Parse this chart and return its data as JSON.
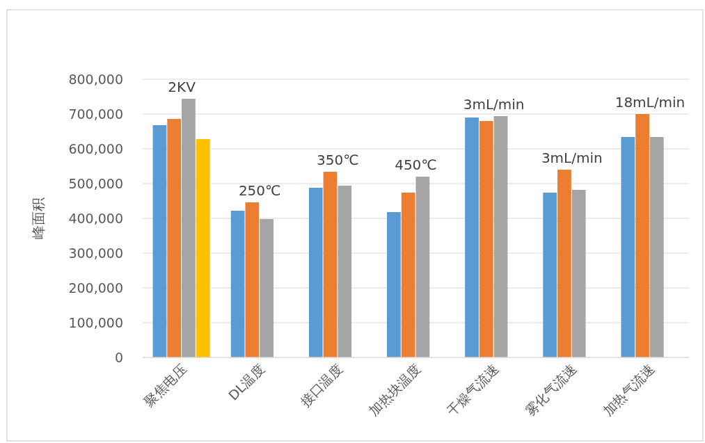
{
  "chart_data": {
    "type": "bar",
    "ylabel": "峰面积",
    "categories": [
      "聚焦电压",
      "DL温度",
      "接口温度",
      "加热块温度",
      "干燥气流速",
      "雾化气流速",
      "加热气流速"
    ],
    "series": [
      {
        "color": "#5b9bd5",
        "values": [
          668000,
          422000,
          488000,
          418000,
          690000,
          474000,
          634000
        ]
      },
      {
        "color": "#ed7d31",
        "values": [
          686000,
          446000,
          534000,
          474000,
          680000,
          540000,
          700000
        ]
      },
      {
        "color": "#a5a5a5",
        "values": [
          744000,
          398000,
          494000,
          520000,
          694000,
          482000,
          634000
        ]
      },
      {
        "color": "#ffc000",
        "values": [
          628000,
          null,
          null,
          null,
          null,
          null,
          null
        ]
      }
    ],
    "ylim": [
      0,
      800000
    ],
    "yticks": [
      {
        "value": 0,
        "label": "0"
      },
      {
        "value": 100000,
        "label": "100,000"
      },
      {
        "value": 200000,
        "label": "200,000"
      },
      {
        "value": 300000,
        "label": "300,000"
      },
      {
        "value": 400000,
        "label": "400,000"
      },
      {
        "value": 500000,
        "label": "500,000"
      },
      {
        "value": 600000,
        "label": "600,000"
      },
      {
        "value": 700000,
        "label": "700,000"
      },
      {
        "value": 800000,
        "label": "800,000"
      }
    ],
    "grid": "y",
    "annotations": [
      "2KV",
      "250℃",
      "350℃",
      "450℃",
      "3mL/min",
      "3mL/min",
      "18mL/min"
    ]
  }
}
